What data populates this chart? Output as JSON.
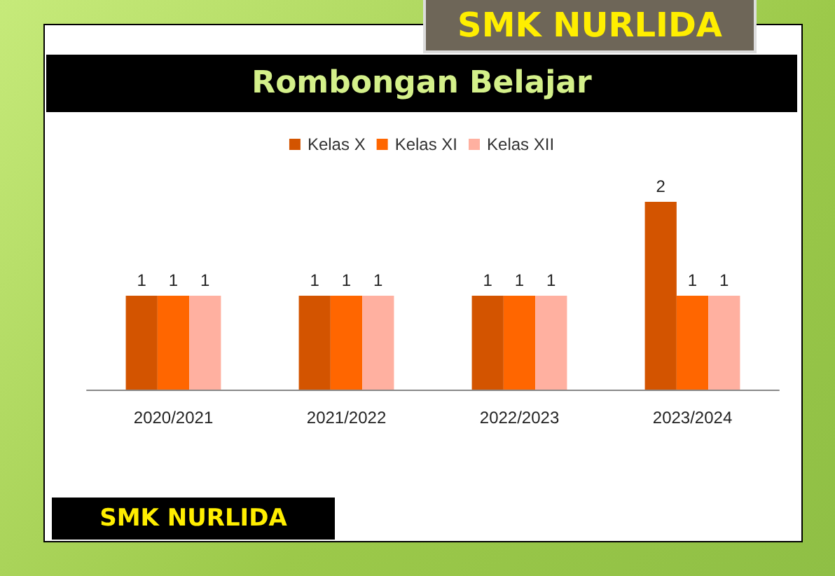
{
  "chart_data": {
    "type": "bar",
    "title": "Rombongan Belajar",
    "categories": [
      "2020/2021",
      "2021/2022",
      "2022/2023",
      "2023/2024"
    ],
    "series": [
      {
        "name": "Kelas X",
        "color": "#d35400",
        "values": [
          1,
          1,
          1,
          2
        ]
      },
      {
        "name": "Kelas XI",
        "color": "#ff6600",
        "values": [
          1,
          1,
          1,
          1
        ]
      },
      {
        "name": "Kelas XII",
        "color": "#ffb0a0",
        "values": [
          1,
          1,
          1,
          1
        ]
      }
    ],
    "data_labels": true,
    "legend": "top",
    "annotations": [
      "SMK NURLIDA",
      "SMK NURLIDA"
    ]
  }
}
